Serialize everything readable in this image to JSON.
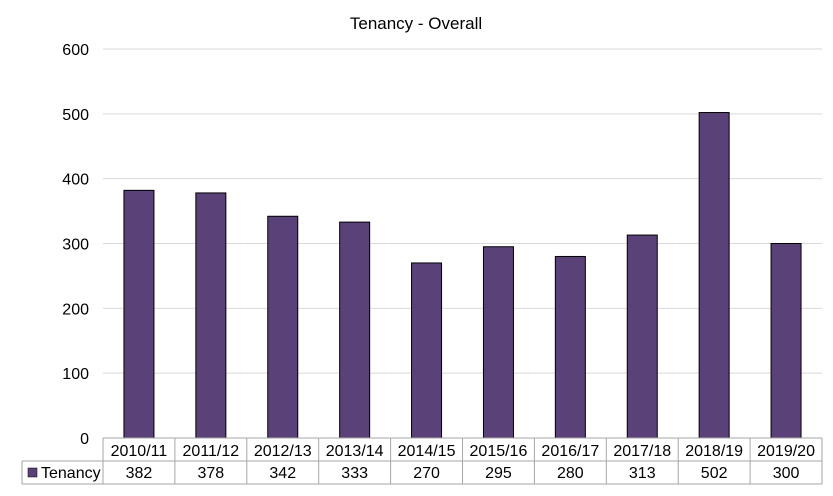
{
  "chart_data": {
    "type": "bar",
    "title": "Tenancy - Overall",
    "xlabel": "",
    "ylabel": "",
    "categories": [
      "2010/11",
      "2011/12",
      "2012/13",
      "2013/14",
      "2014/15",
      "2015/16",
      "2016/17",
      "2017/18",
      "2018/19",
      "2019/20"
    ],
    "series": [
      {
        "name": "Tenancy",
        "values": [
          382,
          378,
          342,
          333,
          270,
          295,
          280,
          313,
          502,
          300
        ],
        "color": "#5a4279"
      }
    ],
    "ylim": [
      0,
      600
    ],
    "yticks": [
      0,
      100,
      200,
      300,
      400,
      500,
      600
    ],
    "grid": true,
    "gridColor": "#d9d9d9",
    "legend": "data-table-left",
    "data_table": true
  }
}
